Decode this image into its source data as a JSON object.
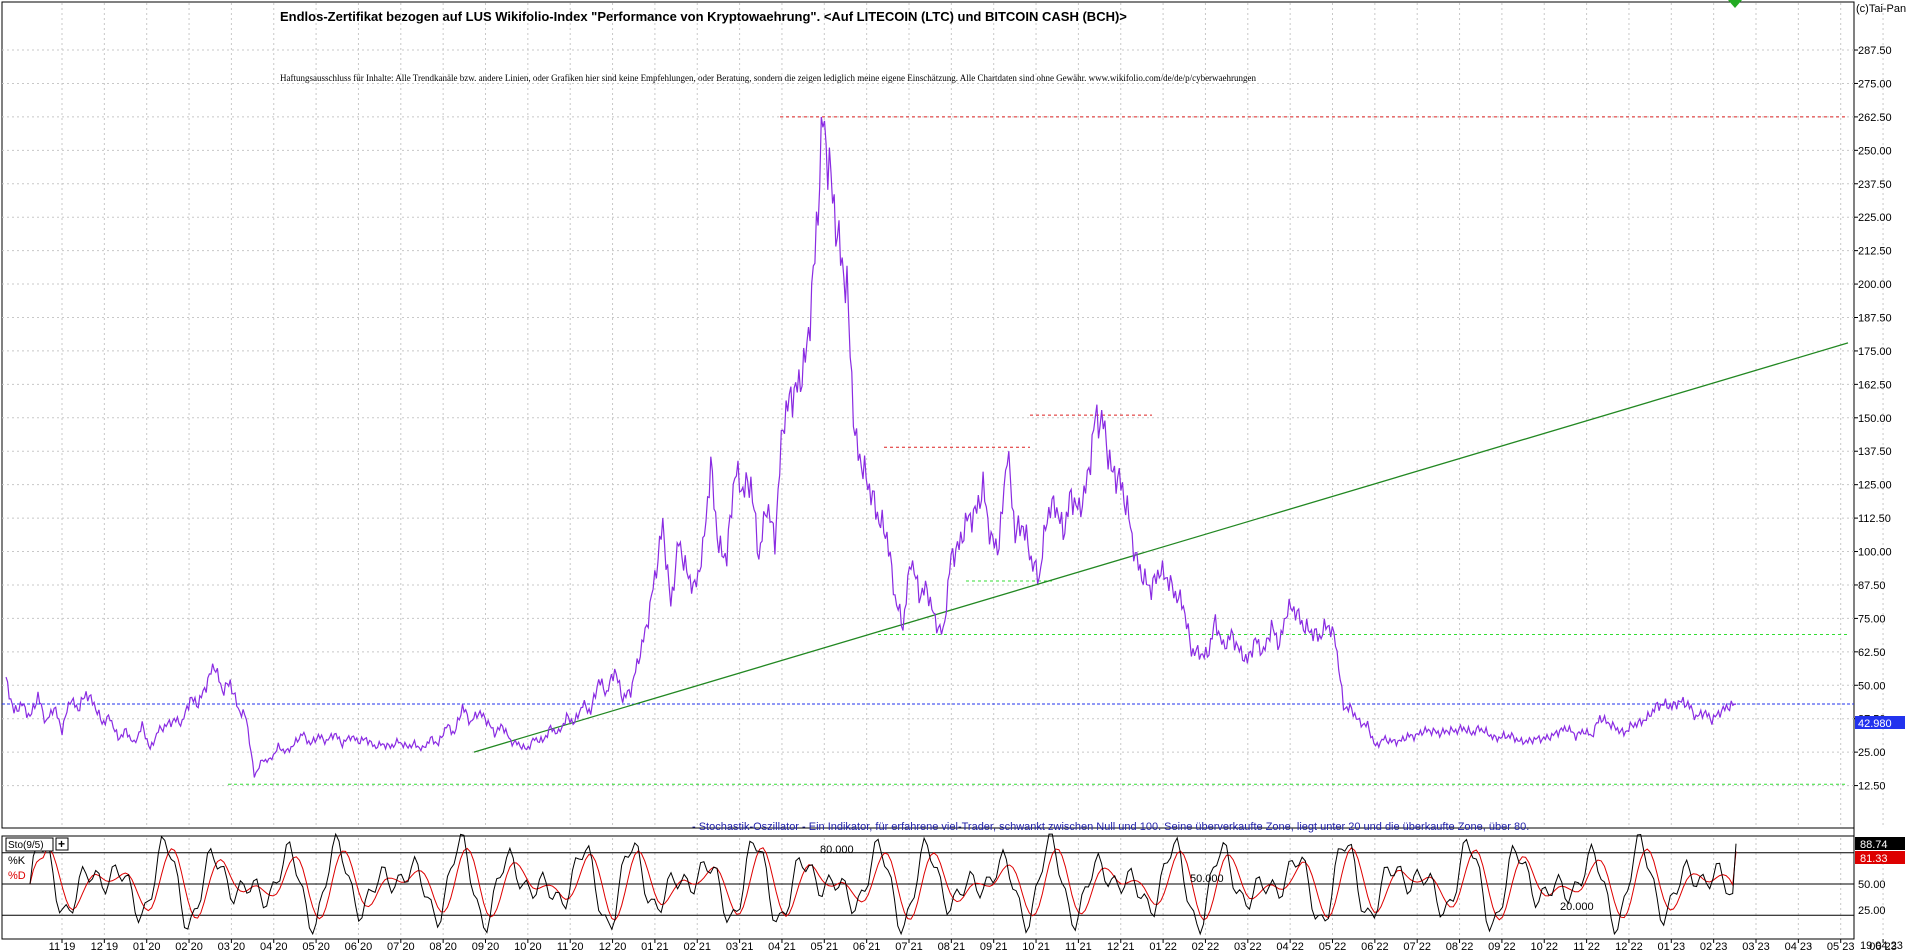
{
  "copyright": "(c)Tai-Pan",
  "chart_data": [
    {
      "type": "line",
      "title": "Endlos-Zertifikat bezogen auf LUS Wikifolio-Index \"Performance von Kryptowaehrung\". <Auf LITECOIN (LTC) und BITCOIN CASH (BCH)>",
      "disclaimer": "Haftungsausschluss für Inhalte: Alle Trendkanäle bzw. andere Linien, oder Grafiken hier sind keine Empfehlungen, oder Beratung, sondern die zeigen lediglich meine eigene Einschätzung. Alle Chartdaten sind ohne Gewähr.  www.wikifolio.com/de/de/p/cyberwaehrungen",
      "ylim": [
        0,
        300
      ],
      "y_ticks": [
        "287.50",
        "275.00",
        "262.50",
        "250.00",
        "237.50",
        "225.00",
        "212.50",
        "200.00",
        "187.50",
        "175.00",
        "162.50",
        "150.00",
        "137.50",
        "125.00",
        "112.50",
        "100.00",
        "87.50",
        "75.00",
        "62.50",
        "50.00",
        "37.50",
        "25.00",
        "12.50"
      ],
      "last_value_label": "42.980",
      "last_value": 42.98,
      "grid": true,
      "series_color": "#8a2be2",
      "series": [
        {
          "values": [
            52,
            40,
            43,
            38,
            46,
            36,
            42,
            33,
            45,
            41,
            47,
            43,
            36,
            38,
            30,
            33,
            28,
            35,
            26,
            33,
            35,
            37,
            36,
            45,
            43,
            50,
            58,
            48,
            51,
            41,
            38,
            16,
            22,
            22,
            27,
            25,
            28,
            32,
            28,
            31,
            29,
            32,
            28,
            31,
            29,
            30,
            27,
            28,
            27,
            29,
            27,
            28,
            26,
            30,
            28,
            35,
            32,
            42,
            36,
            40,
            37,
            32,
            35,
            29,
            28,
            26,
            30,
            29,
            34,
            32,
            38,
            36,
            43,
            40,
            52,
            47,
            56,
            45,
            48,
            60,
            72,
            90,
            110,
            80,
            104,
            92,
            86,
            100,
            132,
            101,
            98,
            130,
            123,
            126,
            98,
            118,
            104,
            148,
            158,
            162,
            175,
            210,
            262,
            238,
            214,
            198,
            142,
            131,
            122,
            112,
            106,
            83,
            72,
            98,
            84,
            86,
            74,
            69,
            98,
            102,
            112,
            114,
            124,
            104,
            102,
            138,
            107,
            110,
            97,
            90,
            114,
            118,
            107,
            121,
            115,
            126,
            150,
            148,
            130,
            127,
            116,
            98,
            90,
            86,
            93,
            90,
            84,
            80,
            63,
            62,
            61,
            74,
            64,
            69,
            63,
            59,
            67,
            62,
            72,
            65,
            79,
            78,
            72,
            70,
            68,
            73,
            67,
            42,
            41,
            36,
            35,
            27,
            30,
            29,
            29,
            31,
            31,
            33,
            33,
            32,
            33,
            33,
            34,
            32,
            34,
            32,
            30,
            31,
            31,
            29,
            29,
            30,
            30,
            31,
            33,
            34,
            31,
            33,
            31,
            38,
            36,
            34,
            32,
            35,
            36,
            38,
            42,
            43,
            42,
            44,
            43,
            38,
            40,
            37,
            40,
            42,
            43
          ]
        }
      ],
      "reference_lines": [
        {
          "kind": "resistance",
          "value": 262.5,
          "color": "#dd2222"
        },
        {
          "kind": "resistance",
          "value": 139,
          "color": "#dd2222"
        },
        {
          "kind": "resistance",
          "value": 151,
          "color": "#dd2222"
        },
        {
          "kind": "support",
          "value": 89,
          "color": "#33dd33"
        },
        {
          "kind": "support",
          "value": 69,
          "color": "#33dd33"
        },
        {
          "kind": "support",
          "value": 13,
          "color": "#33dd33"
        },
        {
          "kind": "current",
          "value": 42.98,
          "color": "#2233ee"
        }
      ],
      "trendline": {
        "start": 25,
        "end": 178,
        "color": "#228822"
      }
    },
    {
      "type": "line",
      "title": "- Stochastik-Oszillator - Ein Indikator, für erfahrene viel-Trader, schwankt zwischen Null und 100. Seine überverkaufte Zone, liegt unter 20 und die überkaufte Zone, über 80.",
      "indicator_label": "Sto(9/5)",
      "ylim": [
        0,
        100
      ],
      "y_ticks": [
        "25.00",
        "50.00"
      ],
      "levels": [
        "80.000",
        "50.000",
        "20.000"
      ],
      "k_label": "%K",
      "d_label": "%D",
      "k_value": "88.74",
      "d_value": "81.33",
      "k_color": "#000000",
      "d_color": "#dd0000"
    }
  ],
  "x_axis": {
    "tick_labels": [
      "11 19",
      "12 19",
      "01 20",
      "02 20",
      "03 20",
      "04 20",
      "05 20",
      "06 20",
      "07 20",
      "08 20",
      "09 20",
      "10 20",
      "11 20",
      "12 20",
      "01 21",
      "02 21",
      "03 21",
      "04 21",
      "05 21",
      "06 21",
      "07 21",
      "08 21",
      "09 21",
      "10 21",
      "11 21",
      "12 21",
      "01 22",
      "02 22",
      "03 22",
      "04 22",
      "05 22",
      "06 22",
      "07 22",
      "08 22",
      "09 22",
      "10 22",
      "11 22",
      "12 22",
      "01 23",
      "02 23",
      "03 23",
      "04 23",
      "05 23",
      "06 23"
    ],
    "end_date": "19.04.23"
  }
}
